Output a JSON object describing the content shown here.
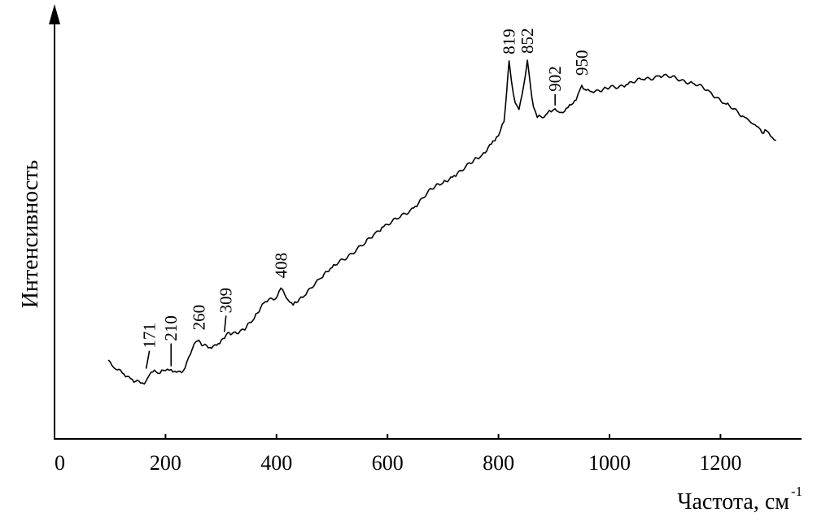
{
  "chart_data": {
    "type": "line",
    "xlabel": "Частота, см",
    "xlabel_superscript": "-1",
    "ylabel": "Интенсивность",
    "xlim": [
      0,
      1350
    ],
    "ylim": [
      0,
      100
    ],
    "xticks": [
      "0",
      "200",
      "400",
      "600",
      "800",
      "1000",
      "1200"
    ],
    "yticks": [],
    "grid": false,
    "legend": "none",
    "line_color": "#000000",
    "peaks": [
      {
        "label": "171",
        "x": 171,
        "y": 9.4
      },
      {
        "label": "210",
        "x": 210,
        "y": 10.1
      },
      {
        "label": "260",
        "x": 260,
        "y": 18.5
      },
      {
        "label": "309",
        "x": 309,
        "y": 19.9
      },
      {
        "label": "408",
        "x": 408,
        "y": 33.4
      },
      {
        "label": "819",
        "x": 819,
        "y": 98.4
      },
      {
        "label": "852",
        "x": 852,
        "y": 98.6
      },
      {
        "label": "902",
        "x": 902,
        "y": 84.7
      },
      {
        "label": "950",
        "x": 950,
        "y": 91.4
      }
    ],
    "series": [
      {
        "x": [
          97,
          110,
          125,
          140,
          155,
          165,
          171,
          180,
          190,
          200,
          210,
          220,
          232,
          245,
          255,
          260,
          268,
          280,
          295,
          309,
          320,
          340,
          360,
          380,
          395,
          408,
          418,
          430,
          450,
          480,
          500,
          530,
          560,
          575,
          590,
          620,
          650,
          680,
          700,
          720,
          750,
          770,
          790,
          800,
          810,
          815,
          819,
          823,
          830,
          837,
          845,
          852,
          857,
          863,
          870,
          885,
          895,
          902,
          910,
          925,
          940,
          950,
          958,
          965,
          980,
          1000,
          1030,
          1060,
          1090,
          1120,
          1150,
          1180,
          1210,
          1240,
          1265,
          1275,
          1283,
          1290,
          1300
        ],
        "y": [
          12.8,
          10.2,
          8.8,
          7.3,
          6.2,
          6.8,
          8.5,
          9.9,
          9.0,
          9.8,
          10.1,
          9.3,
          9.7,
          14.5,
          18.1,
          18.5,
          17.0,
          16.4,
          17.5,
          19.9,
          20.3,
          21.6,
          24.7,
          29.5,
          30.0,
          33.4,
          30.5,
          28.5,
          31.1,
          36.2,
          39.2,
          42.8,
          46.2,
          48.6,
          50.8,
          53.3,
          56.8,
          61.7,
          63.5,
          65.6,
          69.0,
          71.4,
          75.5,
          77.0,
          81.0,
          90.0,
          98.4,
          93.0,
          86.4,
          84.5,
          91.0,
          98.6,
          92.0,
          85.2,
          82.2,
          82.9,
          83.8,
          84.7,
          83.6,
          85.0,
          87.2,
          91.4,
          90.0,
          89.7,
          90.0,
          90.7,
          91.6,
          93.1,
          94.1,
          93.5,
          92.0,
          89.7,
          86.0,
          82.6,
          79.7,
          77.7,
          78.4,
          76.9,
          75.6
        ]
      }
    ]
  }
}
